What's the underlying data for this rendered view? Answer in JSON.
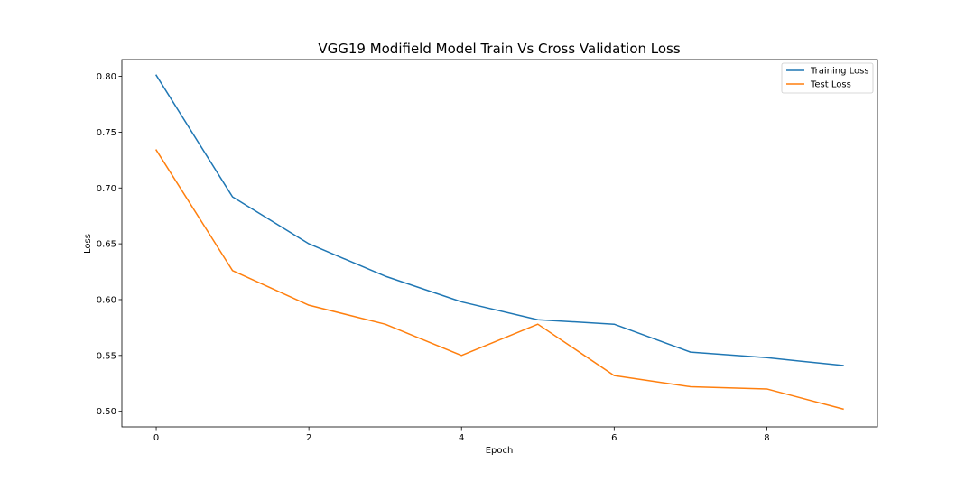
{
  "chart_data": {
    "type": "line",
    "title": "VGG19 Modifield Model Train Vs Cross Validation Loss",
    "xlabel": "Epoch",
    "ylabel": "Loss",
    "x": [
      0,
      1,
      2,
      3,
      4,
      5,
      6,
      7,
      8,
      9
    ],
    "xlim": [
      -0.45,
      9.45
    ],
    "ylim": [
      0.486,
      0.815
    ],
    "xticks": [
      0,
      2,
      4,
      6,
      8
    ],
    "yticks": [
      0.5,
      0.55,
      0.6,
      0.65,
      0.7,
      0.75,
      0.8
    ],
    "xtick_labels": [
      "0",
      "2",
      "4",
      "6",
      "8"
    ],
    "ytick_labels": [
      "0.50",
      "0.55",
      "0.60",
      "0.65",
      "0.70",
      "0.75",
      "0.80"
    ],
    "grid": false,
    "legend_position": "top-right",
    "series": [
      {
        "name": "Training Loss",
        "color": "#1f77b4",
        "values": [
          0.801,
          0.692,
          0.65,
          0.621,
          0.598,
          0.582,
          0.578,
          0.553,
          0.548,
          0.541
        ]
      },
      {
        "name": "Test Loss",
        "color": "#ff7f0e",
        "values": [
          0.734,
          0.626,
          0.595,
          0.578,
          0.55,
          0.578,
          0.532,
          0.522,
          0.52,
          0.502
        ]
      }
    ]
  }
}
